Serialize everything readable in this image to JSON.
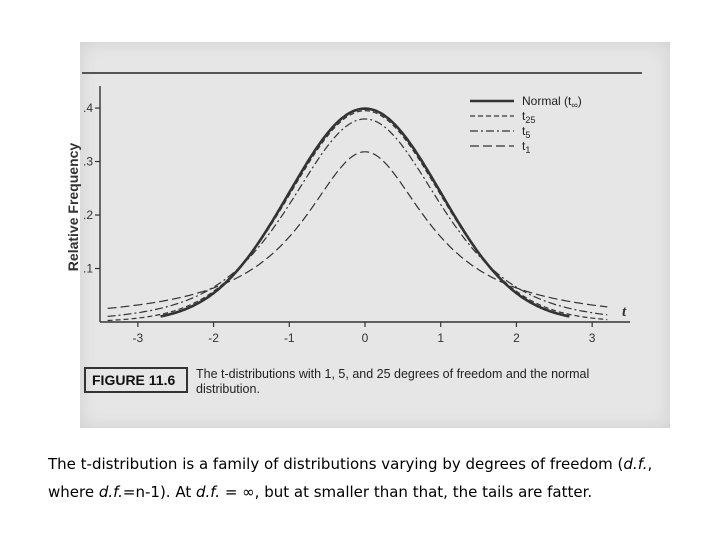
{
  "figure": {
    "label": "FIGURE 11.6",
    "caption": "The t-distributions with 1, 5, and 25 degrees of freedom and the normal distribution."
  },
  "slide_caption": {
    "text_1": "The t-distribution is a family of distributions varying by degrees of freedom (",
    "df_1": "d.f.",
    "text_2": ", where ",
    "df_2": "d.f.",
    "text_3": "=n-1).  At ",
    "df_3": "d.f.",
    "text_4": " = ∞, but at smaller than that, the tails are fatter."
  },
  "colors": {
    "scan_background": "#e6e6e6",
    "curve": "#333333"
  },
  "chart_data": {
    "type": "line",
    "ylabel": "Relative Frequency",
    "xlabel": "t",
    "xlim": [
      -3.5,
      3.5
    ],
    "ylim": [
      0,
      0.43
    ],
    "x_ticks": [
      -3,
      -2,
      -1,
      0,
      1,
      2,
      3
    ],
    "y_ticks": [
      0.1,
      0.2,
      0.3,
      0.4
    ],
    "y_tick_labels": [
      ".1",
      ".2",
      ".3",
      ".4"
    ],
    "legend_position": "top-right",
    "series": [
      {
        "name": "Normal (t∞)",
        "legend_main": "Normal (t",
        "legend_sub": "∞",
        "legend_suffix": ")",
        "df": null,
        "style": "solid-thick"
      },
      {
        "name": "t25",
        "legend_main": "t",
        "legend_sub": "25",
        "legend_suffix": "",
        "df": 25,
        "style": "dashed"
      },
      {
        "name": "t5",
        "legend_main": "t",
        "legend_sub": "5",
        "legend_suffix": "",
        "df": 5,
        "style": "dash-dot"
      },
      {
        "name": "t1",
        "legend_main": "t",
        "legend_sub": "1",
        "legend_suffix": "",
        "df": 1,
        "style": "dashed-long"
      }
    ]
  }
}
